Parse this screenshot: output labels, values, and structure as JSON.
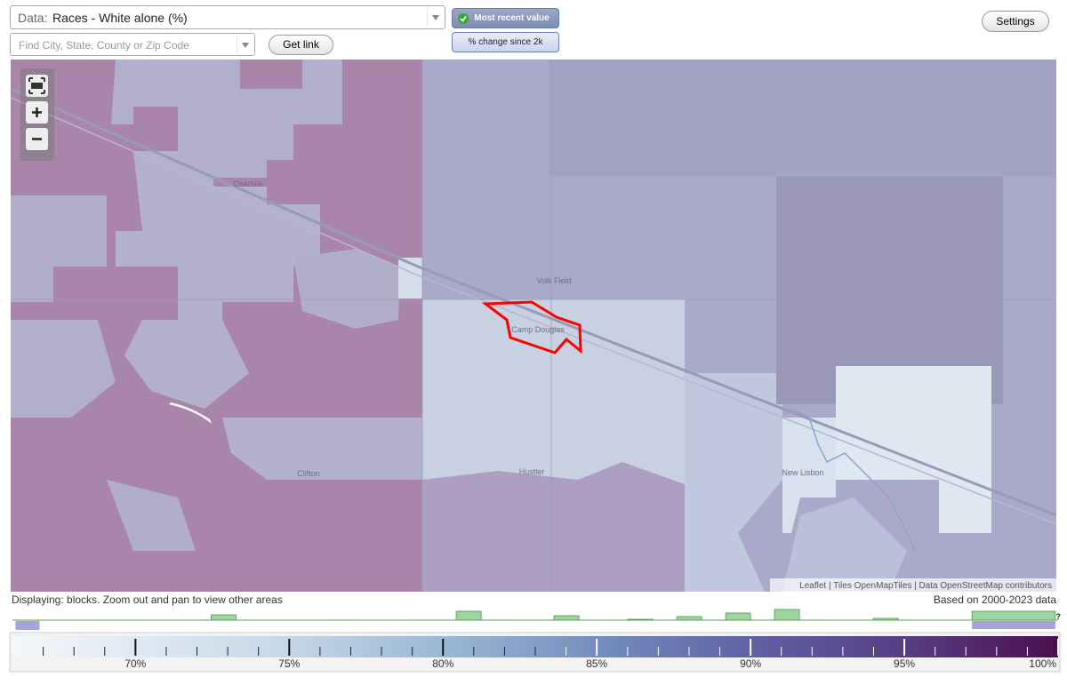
{
  "controls": {
    "data_label": "Data:",
    "data_value": "Races - White alone (%)",
    "search_placeholder": "Find City, State, County or Zip Code",
    "get_link": "Get link",
    "modes": [
      "Most recent value",
      "% change since 2k"
    ],
    "settings": "Settings"
  },
  "map": {
    "places": [
      "Oakdale",
      "Volk Field",
      "Camp Douglas",
      "Hustler",
      "Clifton",
      "New Lisbon"
    ],
    "attribution": "Leaflet | Tiles OpenMapTiles | Data OpenStreetMap contributors"
  },
  "status": {
    "displaying": "Displaying: blocks. Zoom out and pan to view other areas",
    "based_on": "Based on 2000-2023 data"
  },
  "legend": {
    "range": [
      66,
      100
    ],
    "ticks": [
      {
        "value": 70,
        "label": "70%"
      },
      {
        "value": 75,
        "label": "75%"
      },
      {
        "value": 80,
        "label": "80%"
      },
      {
        "value": 85,
        "label": "85%"
      },
      {
        "value": 90,
        "label": "90%"
      },
      {
        "value": 95,
        "label": "95%"
      },
      {
        "value": 100,
        "label": "100%"
      }
    ],
    "minor_ticks": [
      67,
      68,
      69,
      71,
      72,
      73,
      74,
      76,
      77,
      78,
      79,
      81,
      82,
      83,
      84,
      86,
      87,
      88,
      89,
      91,
      92,
      93,
      94,
      96,
      97,
      98,
      99
    ],
    "help": "?"
  },
  "histogram": {
    "bars": [
      {
        "from": 72.46,
        "to": 73.27,
        "count": 6
      },
      {
        "from": 80.43,
        "to": 81.24,
        "count": 10
      },
      {
        "from": 83.61,
        "to": 84.42,
        "count": 5
      },
      {
        "from": 86.01,
        "to": 86.82,
        "count": 1
      },
      {
        "from": 87.6,
        "to": 88.41,
        "count": 4
      },
      {
        "from": 89.19,
        "to": 90,
        "count": 8
      },
      {
        "from": 90.78,
        "to": 91.59,
        "count": 12
      },
      {
        "from": 93.99,
        "to": 94.8,
        "count": 2
      },
      {
        "from": 97.2,
        "to": 99.91,
        "count": 10
      }
    ],
    "selection": [
      {
        "from": 66.1,
        "to": 66.88,
        "count": 10
      },
      {
        "from": 97.2,
        "to": 99.91,
        "count": 9
      }
    ]
  }
}
